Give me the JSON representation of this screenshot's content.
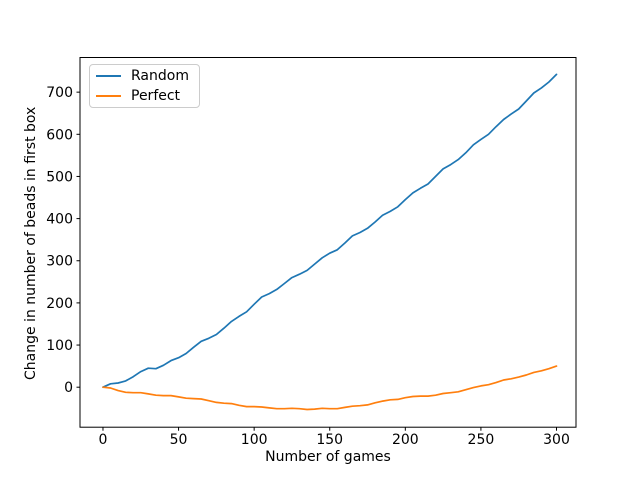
{
  "chart_data": {
    "type": "line",
    "title": "",
    "xlabel": "Number of games",
    "ylabel": "Change in number of beads in first box",
    "x_ticks": [
      0,
      50,
      100,
      150,
      200,
      250,
      300
    ],
    "y_ticks": [
      0,
      100,
      200,
      300,
      400,
      500,
      600,
      700
    ],
    "xlim": [
      -15.2,
      312.9
    ],
    "ylim": [
      -94.9,
      782.2
    ],
    "grid": false,
    "legend": {
      "position": "upper left"
    },
    "x": {
      "start": 0,
      "step": 5,
      "count": 61
    },
    "series": [
      {
        "name": "Random",
        "color": "#1f77b4",
        "values": [
          0,
          8,
          10,
          15,
          25,
          37,
          45,
          44,
          52,
          63,
          70,
          80,
          95,
          109,
          116,
          125,
          140,
          156,
          168,
          179,
          197,
          214,
          222,
          232,
          246,
          260,
          268,
          277,
          292,
          307,
          318,
          326,
          342,
          359,
          367,
          377,
          392,
          408,
          417,
          428,
          445,
          461,
          472,
          482,
          500,
          518,
          528,
          540,
          556,
          575,
          588,
          600,
          618,
          635,
          648,
          660,
          679,
          698,
          710,
          724,
          742
        ]
      },
      {
        "name": "Perfect",
        "color": "#ff7f0e",
        "values": [
          0,
          -2,
          -8,
          -12,
          -13,
          -13,
          -16,
          -19,
          -20,
          -20,
          -23,
          -26,
          -27,
          -28,
          -32,
          -36,
          -38,
          -39,
          -43,
          -46,
          -46,
          -47,
          -49,
          -51,
          -51,
          -50,
          -51,
          -53,
          -52,
          -50,
          -51,
          -51,
          -48,
          -45,
          -44,
          -42,
          -37,
          -33,
          -30,
          -29,
          -25,
          -22,
          -21,
          -21,
          -19,
          -15,
          -13,
          -11,
          -6,
          -1,
          3,
          6,
          11,
          17,
          20,
          24,
          29,
          35,
          39,
          44,
          50
        ]
      }
    ]
  }
}
